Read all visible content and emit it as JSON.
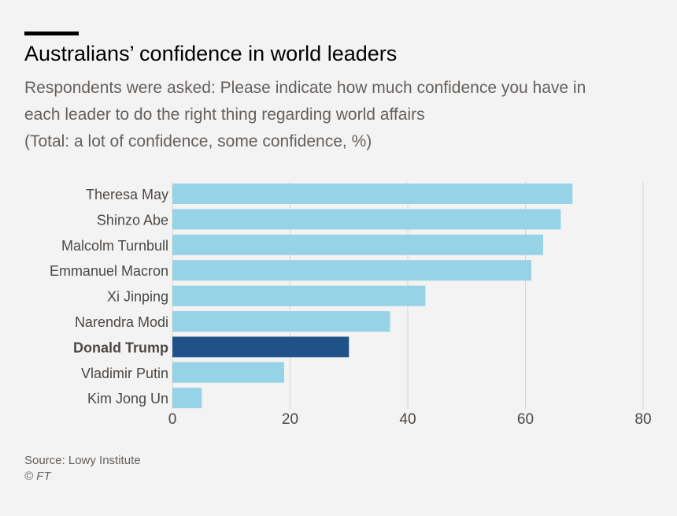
{
  "header": {
    "title": "Australians’ confidence in world leaders",
    "subtitle_lines": [
      "Respondents were asked: Please indicate how much confidence you have in",
      "each leader to do the right thing regarding world affairs",
      "(Total: a lot of confidence, some confidence, %)"
    ]
  },
  "footer": {
    "source": "Source: Lowy Institute",
    "copyright": "© FT"
  },
  "colors": {
    "background": "#f3f3f3",
    "bar": "#96d3e7",
    "highlight": "#1e5288",
    "grid": "#d9d5d1",
    "label": "#4d4845"
  },
  "chart_data": {
    "type": "bar",
    "orientation": "horizontal",
    "title": "Australians’ confidence in world leaders",
    "xlabel": "",
    "ylabel": "",
    "xlim": [
      0,
      80
    ],
    "xticks": [
      0,
      20,
      40,
      60,
      80
    ],
    "grid": true,
    "categories": [
      "Theresa May",
      "Shinzo Abe",
      "Malcolm Turnbull",
      "Emmanuel Macron",
      "Xi Jinping",
      "Narendra Modi",
      "Donald Trump",
      "Vladimir Putin",
      "Kim Jong Un"
    ],
    "values": [
      68,
      66,
      63,
      61,
      43,
      37,
      30,
      19,
      5
    ],
    "highlight": "Donald Trump"
  }
}
